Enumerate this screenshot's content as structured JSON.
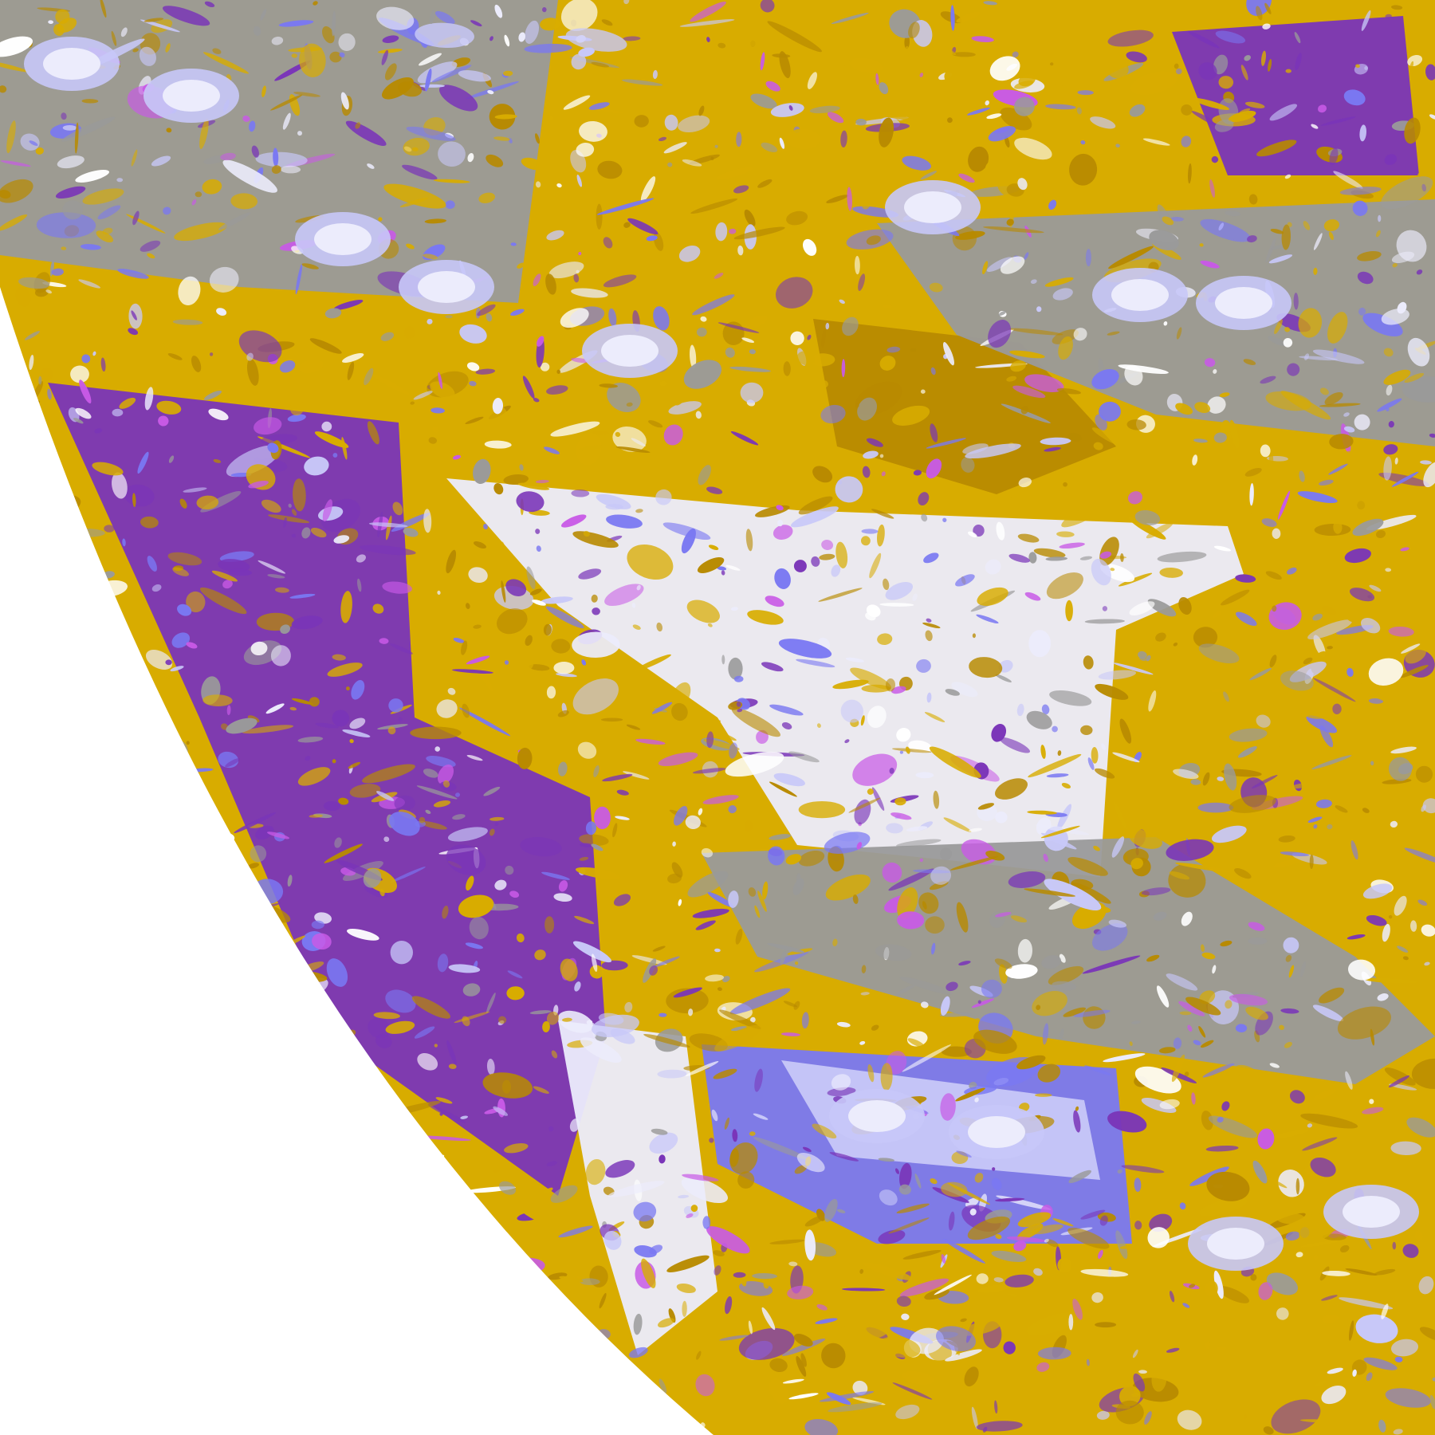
{
  "map": {
    "palette": {
      "background": "#ffffff",
      "gold": "#d8ac00",
      "dark_gold": "#b88a00",
      "purple": "#7a35b8",
      "magenta": "#c85ae6",
      "blue": "#7a78f2",
      "lavender": "#c8c8f8",
      "pale": "#ececfc",
      "gray": "#9a9a9a",
      "space": "#ffffff"
    }
  }
}
